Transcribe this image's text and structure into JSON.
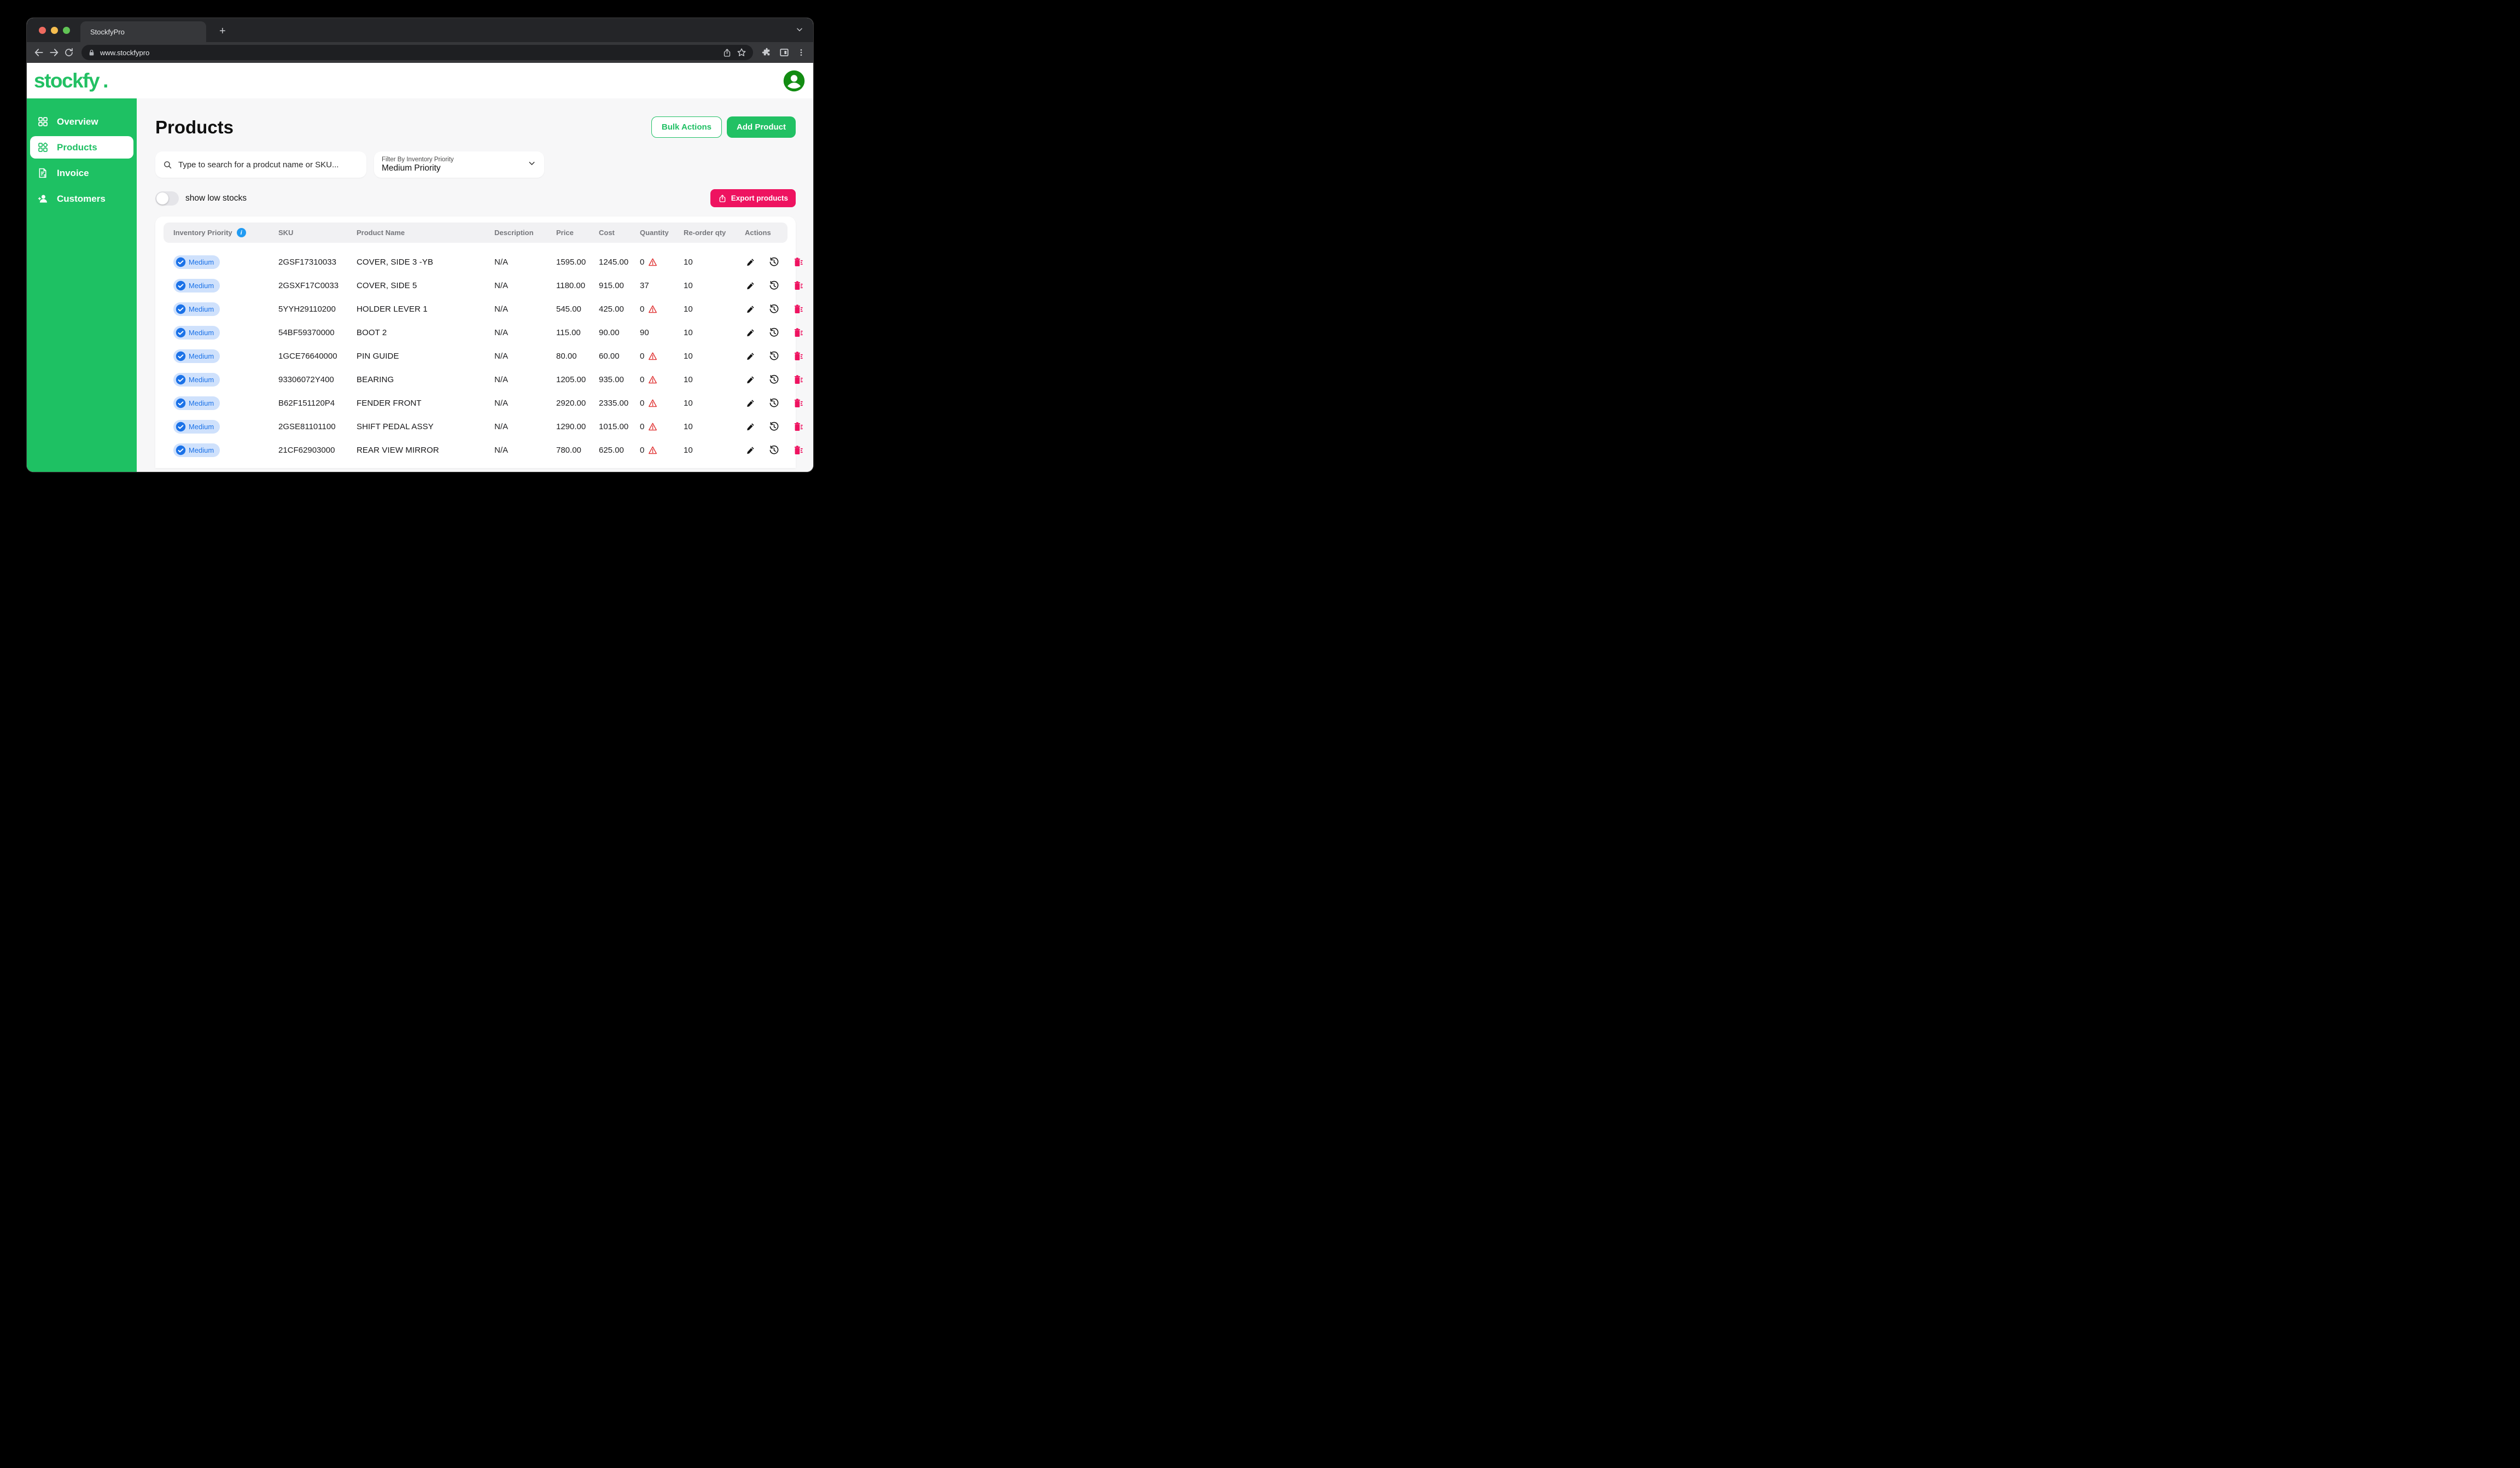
{
  "browser": {
    "tab_title": "StockfyPro",
    "url": "www.stockfypro"
  },
  "header": {
    "logo": "stockfy",
    "logo_dot": "."
  },
  "sidebar": {
    "items": [
      {
        "label": "Overview",
        "icon": "grid-icon",
        "active": false
      },
      {
        "label": "Products",
        "icon": "products-grid-icon",
        "active": true
      },
      {
        "label": "Invoice",
        "icon": "invoice-icon",
        "active": false
      },
      {
        "label": "Customers",
        "icon": "customers-icon",
        "active": false
      }
    ]
  },
  "page": {
    "title": "Products",
    "bulk_actions_label": "Bulk Actions",
    "add_product_label": "Add Product",
    "search_placeholder": "Type to search for a prodcut name or SKU...",
    "filter_label": "Filter By Inventory Priority",
    "filter_value": "Medium Priority",
    "toggle_label": "show low stocks",
    "export_label": "Export products"
  },
  "table": {
    "headers": [
      "Inventory Priority",
      "SKU",
      "Product Name",
      "Description",
      "Price",
      "Cost",
      "Quantity",
      "Re-order qty",
      "Actions"
    ],
    "rows": [
      {
        "priority": "Medium",
        "sku": "2GSF17310033",
        "name": "COVER, SIDE 3 -YB",
        "description": "N/A",
        "price": "1595.00",
        "cost": "1245.00",
        "quantity": "0",
        "low_stock": true,
        "reorder": "10"
      },
      {
        "priority": "Medium",
        "sku": "2GSXF17C0033",
        "name": "COVER, SIDE 5",
        "description": "N/A",
        "price": "1180.00",
        "cost": "915.00",
        "quantity": "37",
        "low_stock": false,
        "reorder": "10"
      },
      {
        "priority": "Medium",
        "sku": "5YYH29110200",
        "name": "HOLDER LEVER 1",
        "description": "N/A",
        "price": "545.00",
        "cost": "425.00",
        "quantity": "0",
        "low_stock": true,
        "reorder": "10"
      },
      {
        "priority": "Medium",
        "sku": "54BF59370000",
        "name": "BOOT 2",
        "description": "N/A",
        "price": "115.00",
        "cost": "90.00",
        "quantity": "90",
        "low_stock": false,
        "reorder": "10"
      },
      {
        "priority": "Medium",
        "sku": "1GCE76640000",
        "name": "PIN GUIDE",
        "description": "N/A",
        "price": "80.00",
        "cost": "60.00",
        "quantity": "0",
        "low_stock": true,
        "reorder": "10"
      },
      {
        "priority": "Medium",
        "sku": "93306072Y400",
        "name": "BEARING",
        "description": "N/A",
        "price": "1205.00",
        "cost": "935.00",
        "quantity": "0",
        "low_stock": true,
        "reorder": "10"
      },
      {
        "priority": "Medium",
        "sku": "B62F151120P4",
        "name": "FENDER FRONT",
        "description": "N/A",
        "price": "2920.00",
        "cost": "2335.00",
        "quantity": "0",
        "low_stock": true,
        "reorder": "10"
      },
      {
        "priority": "Medium",
        "sku": "2GSE81101100",
        "name": "SHIFT PEDAL ASSY",
        "description": "N/A",
        "price": "1290.00",
        "cost": "1015.00",
        "quantity": "0",
        "low_stock": true,
        "reorder": "10"
      },
      {
        "priority": "Medium",
        "sku": "21CF62903000",
        "name": "REAR VIEW MIRROR",
        "description": "N/A",
        "price": "780.00",
        "cost": "625.00",
        "quantity": "0",
        "low_stock": true,
        "reorder": "10"
      }
    ]
  },
  "colors": {
    "brand_green": "#1fc065",
    "accent_pink": "#ee1360",
    "badge_blue": "#1b72e8",
    "badge_blue_bg": "#cfe1fc",
    "warning_red": "#e03131",
    "info_blue": "#219bf2",
    "avatar_green": "#128c12"
  }
}
